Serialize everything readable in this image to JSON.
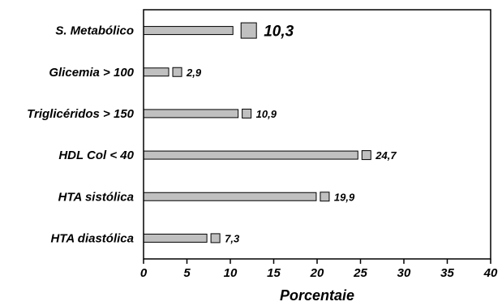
{
  "chart_data": {
    "type": "bar",
    "orientation": "horizontal",
    "title": "",
    "xlabel": "Porcentaie",
    "ylabel": "",
    "xlim": [
      0,
      40
    ],
    "xticks": [
      0,
      5,
      10,
      15,
      20,
      25,
      30,
      35,
      40
    ],
    "grid": false,
    "categories": [
      "S. Metabólico",
      "Glicemia > 100",
      "Triglicéridos > 150",
      "HDL Col < 40",
      "HTA sistólica",
      "HTA diastólica"
    ],
    "values": [
      10.3,
      2.9,
      10.9,
      24.7,
      19.9,
      7.3
    ],
    "value_labels": [
      "10,3",
      "2,9",
      "10,9",
      "24,7",
      "19,9",
      "7,3"
    ],
    "bar_color": "#c0c0c0",
    "edge_color": "#000000"
  }
}
